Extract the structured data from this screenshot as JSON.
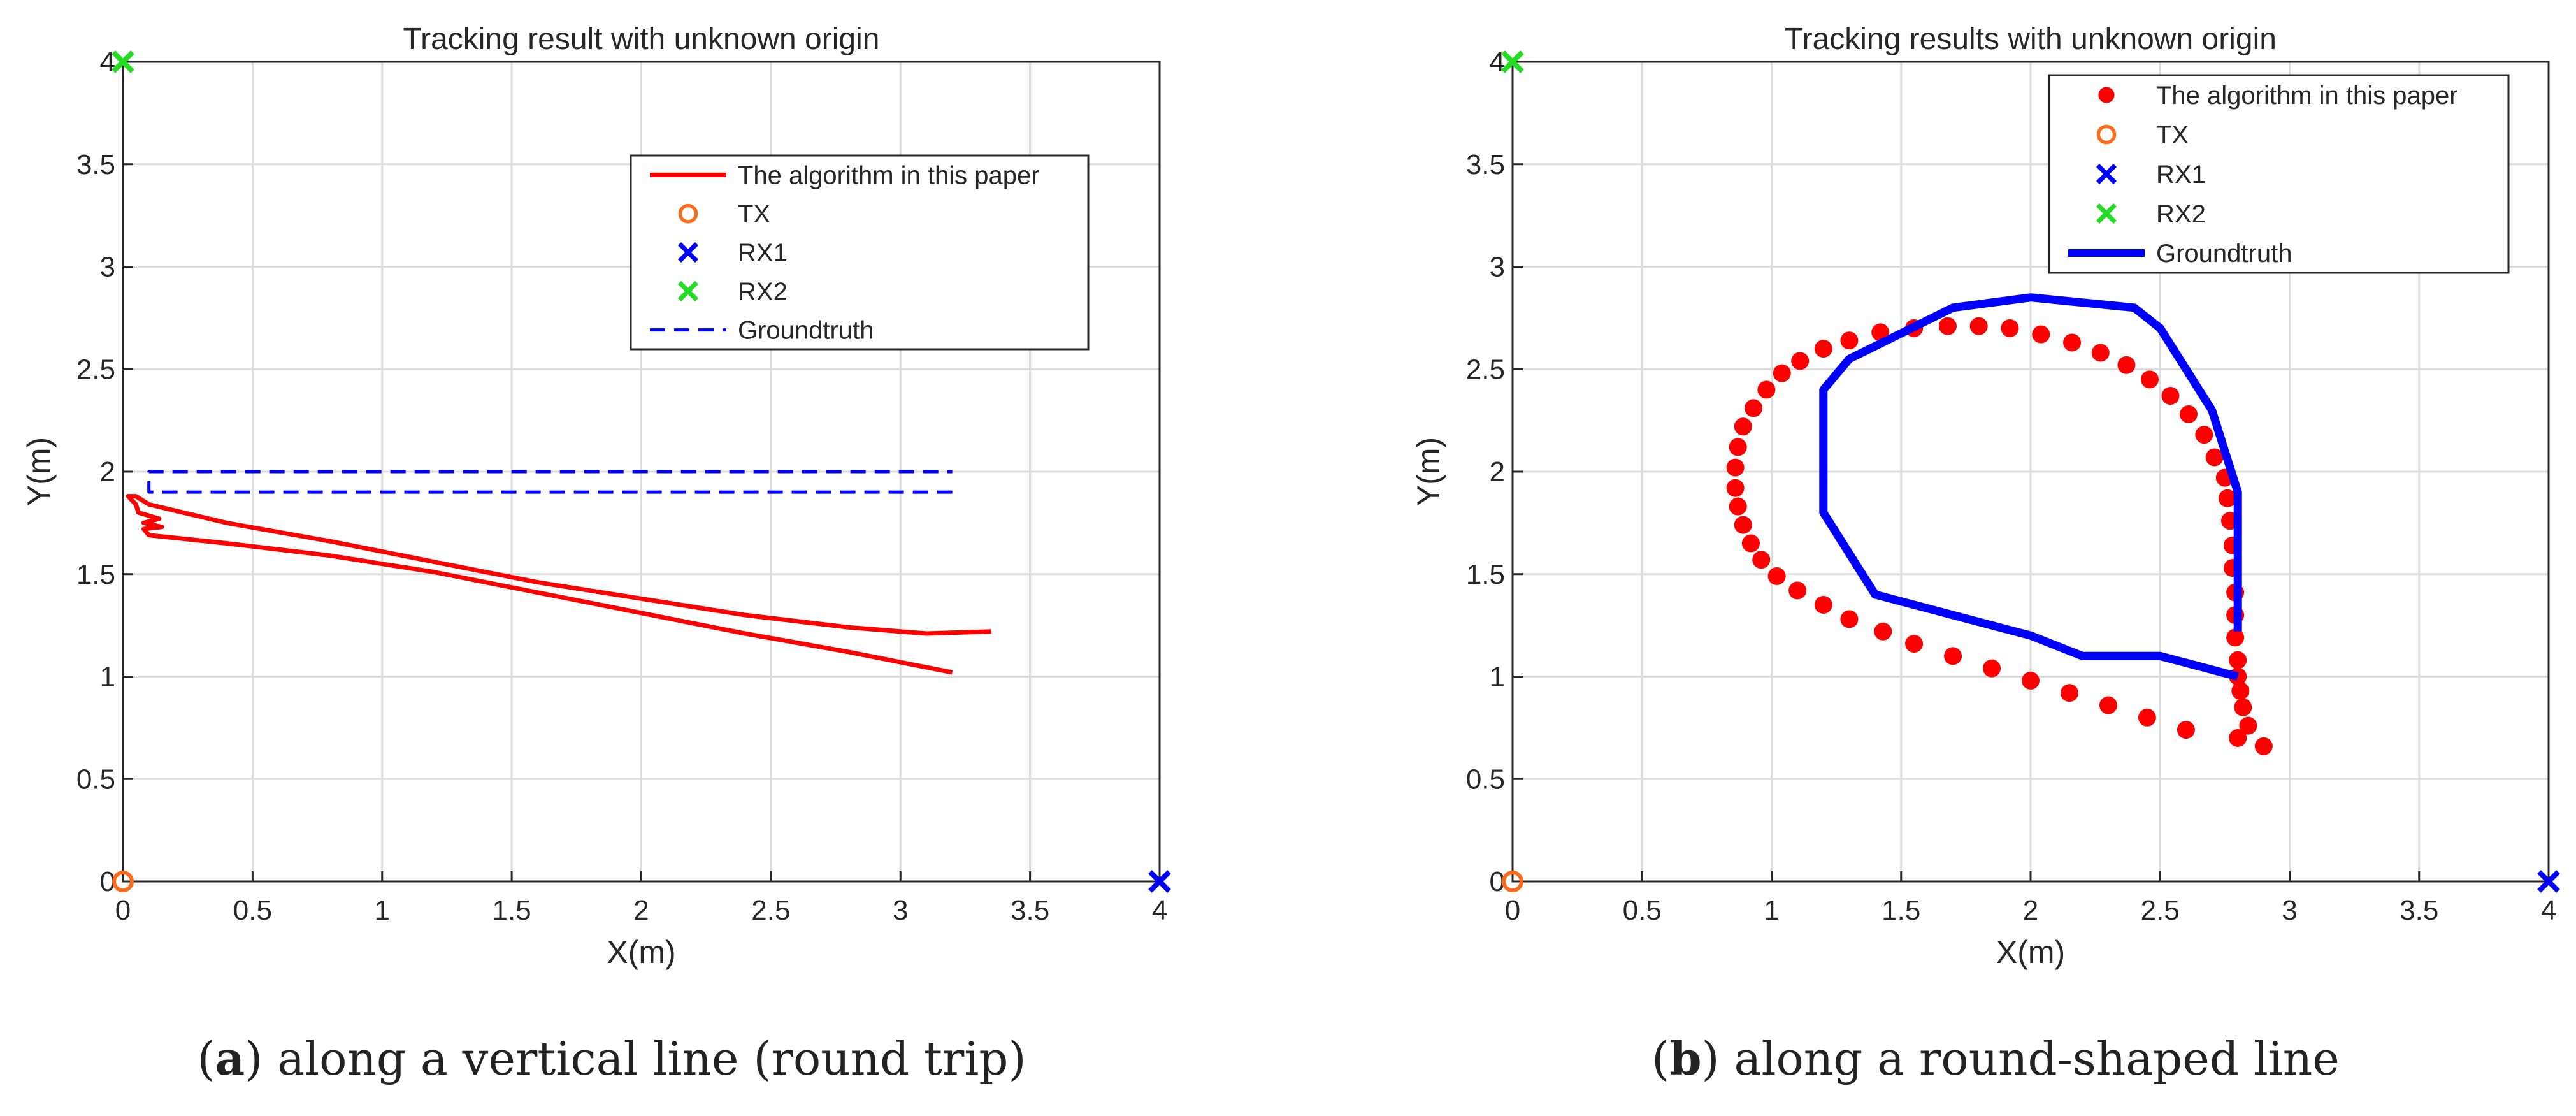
{
  "chart_data": [
    {
      "type": "line",
      "title": "Tracking result with unknown origin",
      "xlabel": "X(m)",
      "ylabel": "Y(m)",
      "xlim": [
        0,
        4
      ],
      "ylim": [
        0,
        4
      ],
      "x_ticks": [
        "0",
        "0.5",
        "1",
        "1.5",
        "2",
        "2.5",
        "3",
        "3.5",
        "4"
      ],
      "y_ticks": [
        "0",
        "0.5",
        "1",
        "1.5",
        "2",
        "2.5",
        "3",
        "3.5",
        "4"
      ],
      "grid": true,
      "legend_position": "upper-right",
      "series": [
        {
          "name": "The algorithm in this paper",
          "style": "solid-line",
          "color": "#ff0000",
          "points": [
            [
              3.2,
              1.02
            ],
            [
              2.8,
              1.12
            ],
            [
              2.4,
              1.21
            ],
            [
              2.0,
              1.31
            ],
            [
              1.6,
              1.41
            ],
            [
              1.2,
              1.51
            ],
            [
              0.8,
              1.59
            ],
            [
              0.4,
              1.65
            ],
            [
              0.1,
              1.69
            ],
            [
              0.08,
              1.72
            ],
            [
              0.15,
              1.73
            ],
            [
              0.08,
              1.75
            ],
            [
              0.14,
              1.77
            ],
            [
              0.06,
              1.8
            ],
            [
              0.05,
              1.84
            ],
            [
              0.02,
              1.88
            ],
            [
              0.05,
              1.88
            ],
            [
              0.1,
              1.84
            ],
            [
              0.4,
              1.75
            ],
            [
              0.8,
              1.66
            ],
            [
              1.2,
              1.56
            ],
            [
              1.6,
              1.46
            ],
            [
              2.0,
              1.38
            ],
            [
              2.4,
              1.3
            ],
            [
              2.8,
              1.24
            ],
            [
              3.1,
              1.21
            ],
            [
              3.35,
              1.22
            ]
          ]
        },
        {
          "name": "TX",
          "style": "circle-marker",
          "color": "#ff6a1a",
          "points": [
            [
              0,
              0
            ]
          ]
        },
        {
          "name": "RX1",
          "style": "x-marker",
          "color": "#0000ff",
          "points": [
            [
              4,
              0
            ]
          ]
        },
        {
          "name": "RX2",
          "style": "x-marker",
          "color": "#22dd22",
          "points": [
            [
              0,
              4
            ]
          ]
        },
        {
          "name": "Groundtruth",
          "style": "dashed-line",
          "color": "#0000ff",
          "points": [
            [
              3.2,
              1.9
            ],
            [
              0.1,
              1.9
            ],
            [
              0.1,
              2.0
            ],
            [
              3.2,
              2.0
            ]
          ]
        }
      ]
    },
    {
      "type": "scatter",
      "title": "Tracking results with unknown origin",
      "xlabel": "X(m)",
      "ylabel": "Y(m)",
      "xlim": [
        0,
        4
      ],
      "ylim": [
        0,
        4
      ],
      "x_ticks": [
        "0",
        "0.5",
        "1",
        "1.5",
        "2",
        "2.5",
        "3",
        "3.5",
        "4"
      ],
      "y_ticks": [
        "0",
        "0.5",
        "1",
        "1.5",
        "2",
        "2.5",
        "3",
        "3.5",
        "4"
      ],
      "grid": true,
      "legend_position": "top-right",
      "series": [
        {
          "name": "The algorithm in this paper",
          "style": "dot-marker",
          "color": "#ff0000",
          "points": [
            [
              2.9,
              0.66
            ],
            [
              2.8,
              0.7
            ],
            [
              2.6,
              0.74
            ],
            [
              2.45,
              0.8
            ],
            [
              2.3,
              0.86
            ],
            [
              2.15,
              0.92
            ],
            [
              2.0,
              0.98
            ],
            [
              1.85,
              1.04
            ],
            [
              1.7,
              1.1
            ],
            [
              1.55,
              1.16
            ],
            [
              1.43,
              1.22
            ],
            [
              1.3,
              1.28
            ],
            [
              1.2,
              1.35
            ],
            [
              1.1,
              1.42
            ],
            [
              1.02,
              1.49
            ],
            [
              0.96,
              1.57
            ],
            [
              0.92,
              1.65
            ],
            [
              0.89,
              1.74
            ],
            [
              0.87,
              1.83
            ],
            [
              0.86,
              1.92
            ],
            [
              0.86,
              2.02
            ],
            [
              0.87,
              2.12
            ],
            [
              0.89,
              2.22
            ],
            [
              0.93,
              2.31
            ],
            [
              0.98,
              2.4
            ],
            [
              1.04,
              2.48
            ],
            [
              1.11,
              2.54
            ],
            [
              1.2,
              2.6
            ],
            [
              1.3,
              2.64
            ],
            [
              1.42,
              2.68
            ],
            [
              1.55,
              2.7
            ],
            [
              1.68,
              2.71
            ],
            [
              1.8,
              2.71
            ],
            [
              1.92,
              2.7
            ],
            [
              2.04,
              2.67
            ],
            [
              2.16,
              2.63
            ],
            [
              2.27,
              2.58
            ],
            [
              2.37,
              2.52
            ],
            [
              2.46,
              2.45
            ],
            [
              2.54,
              2.37
            ],
            [
              2.61,
              2.28
            ],
            [
              2.67,
              2.18
            ],
            [
              2.71,
              2.07
            ],
            [
              2.75,
              1.97
            ],
            [
              2.76,
              1.87
            ],
            [
              2.77,
              1.76
            ],
            [
              2.78,
              1.64
            ],
            [
              2.78,
              1.53
            ],
            [
              2.79,
              1.41
            ],
            [
              2.79,
              1.3
            ],
            [
              2.79,
              1.19
            ],
            [
              2.8,
              1.08
            ],
            [
              2.8,
              1.0
            ],
            [
              2.81,
              0.93
            ],
            [
              2.82,
              0.85
            ],
            [
              2.84,
              0.76
            ]
          ]
        },
        {
          "name": "TX",
          "style": "circle-marker",
          "color": "#ff6a1a",
          "points": [
            [
              0,
              0
            ]
          ]
        },
        {
          "name": "RX1",
          "style": "x-marker",
          "color": "#0000ff",
          "points": [
            [
              4,
              0
            ]
          ]
        },
        {
          "name": "RX2",
          "style": "x-marker",
          "color": "#22dd22",
          "points": [
            [
              0,
              4
            ]
          ]
        },
        {
          "name": "Groundtruth",
          "style": "thick-solid-line",
          "color": "#0000ff",
          "points": [
            [
              2.8,
              1.22
            ],
            [
              2.8,
              1.9
            ],
            [
              2.7,
              2.3
            ],
            [
              2.5,
              2.7
            ],
            [
              2.4,
              2.8
            ],
            [
              2.0,
              2.85
            ],
            [
              1.7,
              2.8
            ],
            [
              1.3,
              2.55
            ],
            [
              1.2,
              2.4
            ],
            [
              1.2,
              1.8
            ],
            [
              1.4,
              1.4
            ],
            [
              2.0,
              1.2
            ],
            [
              2.2,
              1.1
            ],
            [
              2.5,
              1.1
            ],
            [
              2.8,
              1.0
            ]
          ]
        }
      ]
    }
  ],
  "captions": [
    {
      "letter": "a",
      "text": ") along a vertical line (round trip)"
    },
    {
      "letter": "b",
      "text": ") along a round-shaped line"
    }
  ]
}
